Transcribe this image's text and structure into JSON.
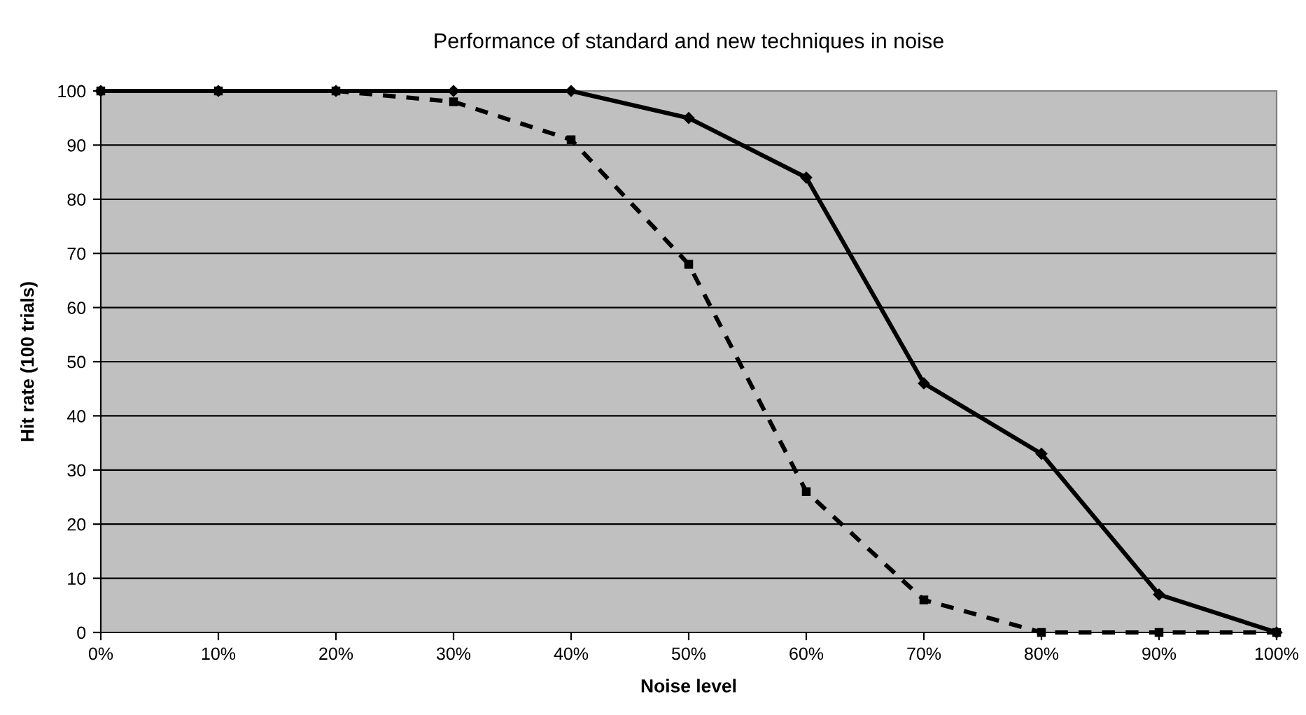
{
  "chart_data": {
    "type": "line",
    "title": "Performance of standard and new techniques in noise",
    "xlabel": "Noise level",
    "ylabel": "Hit rate (100 trials)",
    "categories": [
      "0%",
      "10%",
      "20%",
      "30%",
      "40%",
      "50%",
      "60%",
      "70%",
      "80%",
      "90%",
      "100%"
    ],
    "series": [
      {
        "color": "#000000",
        "line_style": "solid",
        "marker": "diamond",
        "values": [
          100,
          100,
          100,
          100,
          100,
          95,
          84,
          46,
          33,
          7,
          0
        ]
      },
      {
        "color": "#000000",
        "line_style": "dashed",
        "marker": "square",
        "values": [
          100,
          100,
          100,
          98,
          91,
          68,
          26,
          6,
          0,
          0,
          0
        ]
      }
    ],
    "ylim": [
      0,
      100
    ],
    "yticks": [
      0,
      10,
      20,
      30,
      40,
      50,
      60,
      70,
      80,
      90,
      100
    ],
    "grid": "y"
  }
}
